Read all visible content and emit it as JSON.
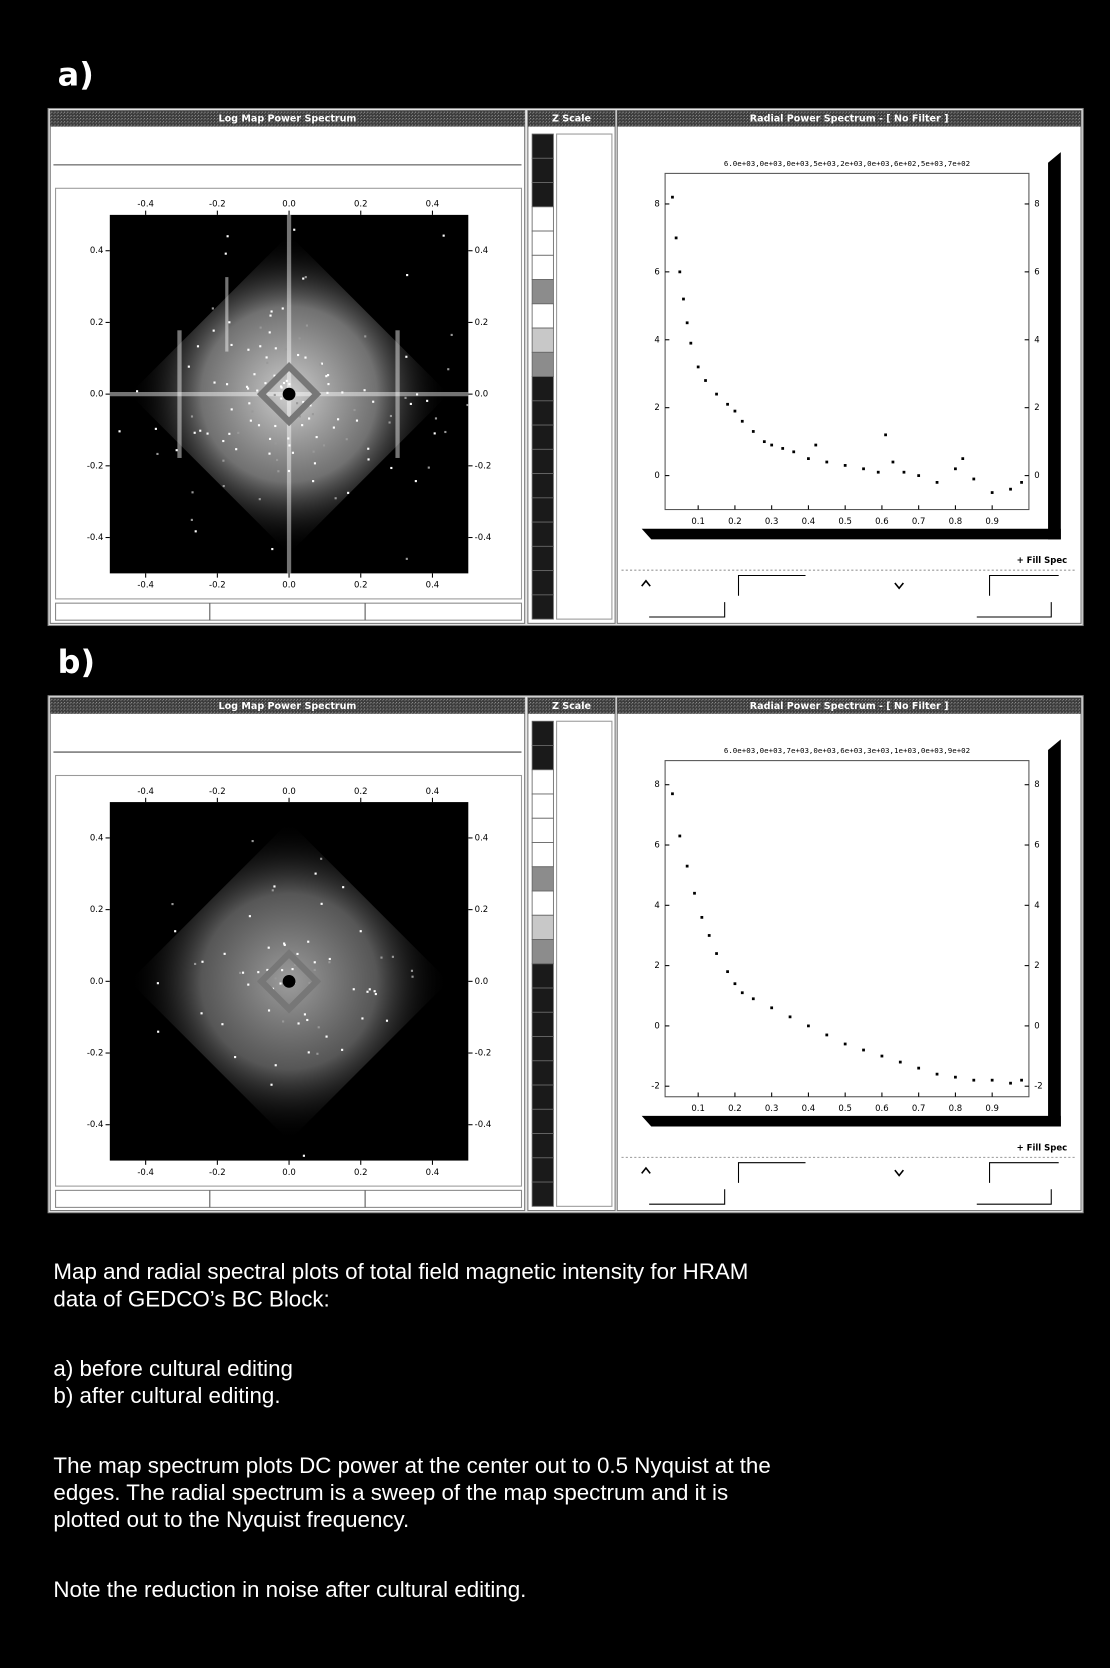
{
  "panels": [
    {
      "label": "a)",
      "map": {
        "title": "Log Map Power Spectrum",
        "lim": [
          -0.5,
          0.5
        ],
        "ticks": [
          -0.4,
          -0.2,
          {
            "value": 0,
            "label": "0.0"
          },
          0.2,
          0.4
        ]
      },
      "zscale": {
        "title": "Z Scale"
      },
      "radial": {
        "title": "Radial Power Spectrum - [ No Filter ]",
        "top_label": "6.0e+03,0e+03,0e+03,5e+03,2e+03,0e+03,6e+02,5e+03,7e+02",
        "xlim": [
          0.01,
          1.0
        ],
        "ylim": [
          -1,
          8.9
        ],
        "xticks": [
          0.1,
          0.2,
          0.3,
          0.4,
          0.5,
          0.6,
          0.7,
          0.8,
          0.9
        ],
        "yticks": [
          0,
          2,
          4,
          6,
          8
        ],
        "x": [
          0.03,
          0.04,
          0.05,
          0.06,
          0.07,
          0.08,
          0.1,
          0.12,
          0.15,
          0.18,
          0.2,
          0.22,
          0.25,
          0.28,
          0.3,
          0.33,
          0.36,
          0.4,
          0.42,
          0.45,
          0.5,
          0.55,
          0.59,
          0.61,
          0.63,
          0.66,
          0.7,
          0.75,
          0.8,
          0.82,
          0.85,
          0.9,
          0.95,
          0.98
        ],
        "y": [
          8.2,
          7.0,
          6.0,
          5.2,
          4.5,
          3.9,
          3.2,
          2.8,
          2.4,
          2.1,
          1.9,
          1.6,
          1.3,
          1.0,
          0.9,
          0.8,
          0.7,
          0.5,
          0.9,
          0.4,
          0.3,
          0.2,
          0.1,
          1.2,
          0.4,
          0.1,
          0.0,
          -0.2,
          0.2,
          0.5,
          -0.1,
          -0.5,
          -0.4,
          -0.2
        ],
        "fill_button": "+ Fill Spec"
      }
    },
    {
      "label": "b)",
      "map": {
        "title": "Log Map Power Spectrum",
        "lim": [
          -0.5,
          0.5
        ],
        "ticks": [
          -0.4,
          -0.2,
          {
            "value": 0,
            "label": "0.0"
          },
          0.2,
          0.4
        ]
      },
      "zscale": {
        "title": "Z Scale"
      },
      "radial": {
        "title": "Radial Power Spectrum - [ No Filter ]",
        "top_label": "6.0e+03,0e+03,7e+03,0e+03,6e+03,3e+03,1e+03,0e+03,9e+02",
        "xlim": [
          0.01,
          1.0
        ],
        "ylim": [
          -2.35,
          8.8
        ],
        "xticks": [
          0.1,
          0.2,
          0.3,
          0.4,
          0.5,
          0.6,
          0.7,
          0.8,
          0.9
        ],
        "yticks": [
          -2,
          0,
          2,
          4,
          6,
          8
        ],
        "x": [
          0.03,
          0.05,
          0.07,
          0.09,
          0.11,
          0.13,
          0.15,
          0.18,
          0.2,
          0.22,
          0.25,
          0.3,
          0.35,
          0.4,
          0.45,
          0.5,
          0.55,
          0.6,
          0.65,
          0.7,
          0.75,
          0.8,
          0.85,
          0.9,
          0.95,
          0.98
        ],
        "y": [
          7.7,
          6.3,
          5.3,
          4.4,
          3.6,
          3.0,
          2.4,
          1.8,
          1.4,
          1.1,
          0.9,
          0.6,
          0.3,
          0.0,
          -0.3,
          -0.6,
          -0.8,
          -1.0,
          -1.2,
          -1.4,
          -1.6,
          -1.7,
          -1.8,
          -1.8,
          -1.9,
          -1.8
        ],
        "fill_button": "+ Fill Spec"
      }
    }
  ],
  "caption": {
    "paragraphs": [
      [
        "Map and radial spectral plots of total field magnetic intensity for HRAM",
        "data of GEDCO’s BC Block:"
      ],
      [
        "a) before cultural editing",
        "b) after cultural editing."
      ],
      [
        "The map spectrum plots DC power at the center out to 0.5 Nyquist at the",
        "edges. The radial spectrum is a sweep of the map spectrum and it is",
        "plotted out to the Nyquist frequency."
      ],
      [
        "Note the reduction in noise after cultural editing."
      ]
    ]
  }
}
